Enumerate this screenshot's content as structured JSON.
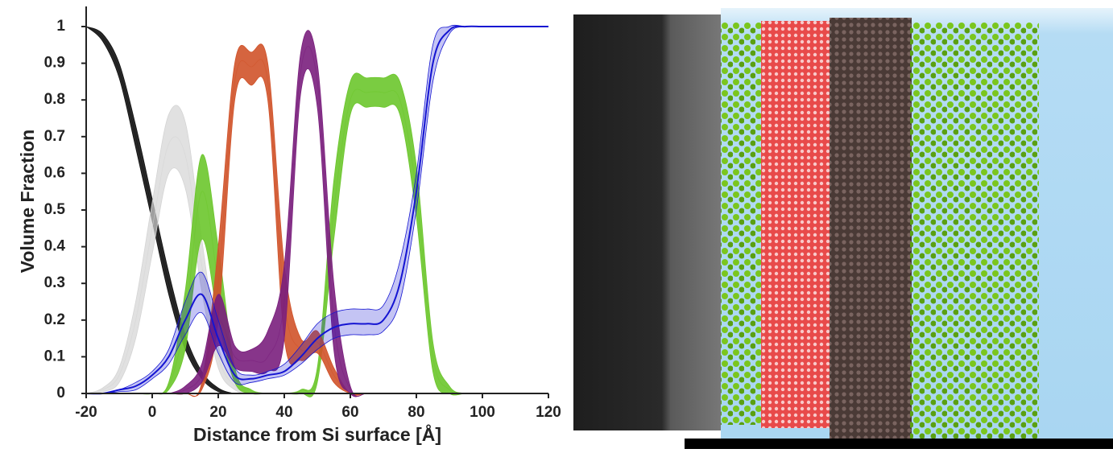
{
  "chart_data": {
    "type": "band",
    "x_label": "Distance from Si surface [Å]",
    "y_label": "Volume Fraction",
    "xlim": [
      -20,
      120
    ],
    "xticks": [
      -20,
      0,
      20,
      40,
      60,
      80,
      100,
      120
    ],
    "ylim": [
      0,
      1
    ],
    "yticks": [
      0,
      0.1,
      0.2,
      0.3,
      0.4,
      0.5,
      0.6,
      0.7,
      0.8,
      0.9,
      1
    ],
    "x": [
      -20,
      -15,
      -10,
      -5,
      0,
      5,
      10,
      15,
      20,
      25,
      30,
      35,
      40,
      45,
      50,
      55,
      60,
      65,
      70,
      75,
      80,
      85,
      90,
      95,
      100,
      105,
      110,
      115,
      120
    ],
    "series": [
      {
        "color": "#111111",
        "values": [
          1,
          0.97,
          0.88,
          0.7,
          0.5,
          0.3,
          0.14,
          0.05,
          0.01,
          0,
          0,
          0,
          0,
          0,
          0,
          0,
          0,
          0,
          0,
          0,
          0,
          0,
          0,
          0,
          0,
          0,
          0,
          0,
          0
        ],
        "upper": [
          1,
          0.98,
          0.9,
          0.73,
          0.53,
          0.33,
          0.16,
          0.06,
          0.015,
          0,
          0,
          0,
          0,
          0,
          0,
          0,
          0,
          0,
          0,
          0,
          0,
          0,
          0,
          0,
          0,
          0,
          0,
          0,
          0
        ],
        "lower": [
          1,
          0.96,
          0.86,
          0.67,
          0.47,
          0.27,
          0.12,
          0.04,
          0.005,
          0,
          0,
          0,
          0,
          0,
          0,
          0,
          0,
          0,
          0,
          0,
          0,
          0,
          0,
          0,
          0,
          0,
          0,
          0,
          0
        ]
      },
      {
        "color": "#d4d4d4",
        "values": [
          0,
          0.01,
          0.05,
          0.2,
          0.45,
          0.68,
          0.65,
          0.35,
          0.1,
          0.02,
          0,
          0,
          0,
          0,
          0,
          0,
          0,
          0,
          0,
          0,
          0,
          0,
          0,
          0,
          0,
          0,
          0,
          0,
          0
        ],
        "upper": [
          0,
          0.015,
          0.07,
          0.25,
          0.52,
          0.76,
          0.74,
          0.42,
          0.13,
          0.03,
          0,
          0,
          0,
          0,
          0,
          0,
          0,
          0,
          0,
          0,
          0,
          0,
          0,
          0,
          0,
          0,
          0,
          0,
          0
        ],
        "lower": [
          0,
          0.005,
          0.03,
          0.15,
          0.38,
          0.6,
          0.56,
          0.28,
          0.07,
          0.01,
          0,
          0,
          0,
          0,
          0,
          0,
          0,
          0,
          0,
          0,
          0,
          0,
          0,
          0,
          0,
          0,
          0,
          0,
          0
        ]
      },
      {
        "color": "#6cc62c",
        "values": [
          0,
          0,
          0,
          0,
          0,
          0.02,
          0.2,
          0.55,
          0.3,
          0.05,
          0.01,
          0,
          0,
          0.01,
          0.05,
          0.5,
          0.8,
          0.82,
          0.82,
          0.8,
          0.55,
          0.1,
          0.01,
          0,
          0,
          0,
          0,
          0,
          0
        ],
        "upper": [
          0,
          0,
          0,
          0,
          0,
          0.03,
          0.28,
          0.65,
          0.4,
          0.07,
          0.01,
          0,
          0,
          0.01,
          0.07,
          0.58,
          0.85,
          0.86,
          0.86,
          0.85,
          0.62,
          0.14,
          0.02,
          0,
          0,
          0,
          0,
          0,
          0
        ],
        "lower": [
          0,
          0,
          0,
          0,
          0,
          0.01,
          0.12,
          0.42,
          0.2,
          0.03,
          0,
          0,
          0,
          0,
          0.03,
          0.42,
          0.76,
          0.78,
          0.78,
          0.76,
          0.48,
          0.06,
          0,
          0,
          0,
          0,
          0,
          0,
          0
        ]
      },
      {
        "color": "#d0532a",
        "values": [
          0,
          0,
          0,
          0,
          0,
          0,
          0,
          0.02,
          0.3,
          0.85,
          0.89,
          0.85,
          0.25,
          0.12,
          0.14,
          0.05,
          0,
          0,
          0,
          0,
          0,
          0,
          0,
          0,
          0,
          0,
          0,
          0,
          0
        ],
        "upper": [
          0,
          0,
          0,
          0,
          0,
          0,
          0,
          0.03,
          0.4,
          0.9,
          0.93,
          0.9,
          0.35,
          0.15,
          0.17,
          0.07,
          0,
          0,
          0,
          0,
          0,
          0,
          0,
          0,
          0,
          0,
          0,
          0,
          0
        ],
        "lower": [
          0,
          0,
          0,
          0,
          0,
          0,
          0,
          0.01,
          0.2,
          0.8,
          0.84,
          0.8,
          0.15,
          0.09,
          0.11,
          0.03,
          0,
          0,
          0,
          0,
          0,
          0,
          0,
          0,
          0,
          0,
          0,
          0,
          0
        ]
      },
      {
        "color": "#7a1f7d",
        "values": [
          0,
          0,
          0,
          0,
          0,
          0,
          0.01,
          0.05,
          0.2,
          0.1,
          0.09,
          0.1,
          0.25,
          0.88,
          0.85,
          0.2,
          0.01,
          0,
          0,
          0,
          0,
          0,
          0,
          0,
          0,
          0,
          0,
          0,
          0
        ],
        "upper": [
          0,
          0,
          0,
          0,
          0,
          0,
          0.02,
          0.08,
          0.27,
          0.13,
          0.12,
          0.17,
          0.35,
          0.93,
          0.9,
          0.3,
          0.02,
          0,
          0,
          0,
          0,
          0,
          0,
          0,
          0,
          0,
          0,
          0,
          0
        ],
        "lower": [
          0,
          0,
          0,
          0,
          0,
          0,
          0,
          0.03,
          0.13,
          0.07,
          0.06,
          0.06,
          0.15,
          0.82,
          0.78,
          0.12,
          0,
          0,
          0,
          0,
          0,
          0,
          0,
          0,
          0,
          0,
          0,
          0,
          0
        ]
      },
      {
        "color": "#1414d2",
        "values": [
          0,
          0,
          0.01,
          0.02,
          0.05,
          0.1,
          0.2,
          0.27,
          0.15,
          0.05,
          0.04,
          0.05,
          0.06,
          0.1,
          0.15,
          0.18,
          0.19,
          0.19,
          0.2,
          0.3,
          0.55,
          0.9,
          0.99,
          1,
          1,
          1,
          1,
          1,
          1
        ],
        "upper": [
          0,
          0,
          0.01,
          0.03,
          0.06,
          0.12,
          0.25,
          0.33,
          0.2,
          0.07,
          0.05,
          0.06,
          0.08,
          0.13,
          0.19,
          0.22,
          0.23,
          0.23,
          0.24,
          0.36,
          0.6,
          0.95,
          1,
          1,
          1,
          1,
          1,
          1,
          1
        ],
        "lower": [
          0,
          0,
          0.005,
          0.01,
          0.04,
          0.08,
          0.16,
          0.22,
          0.11,
          0.03,
          0.03,
          0.04,
          0.05,
          0.08,
          0.12,
          0.15,
          0.16,
          0.16,
          0.17,
          0.25,
          0.5,
          0.85,
          0.98,
          1,
          1,
          1,
          1,
          1,
          1
        ]
      }
    ]
  }
}
